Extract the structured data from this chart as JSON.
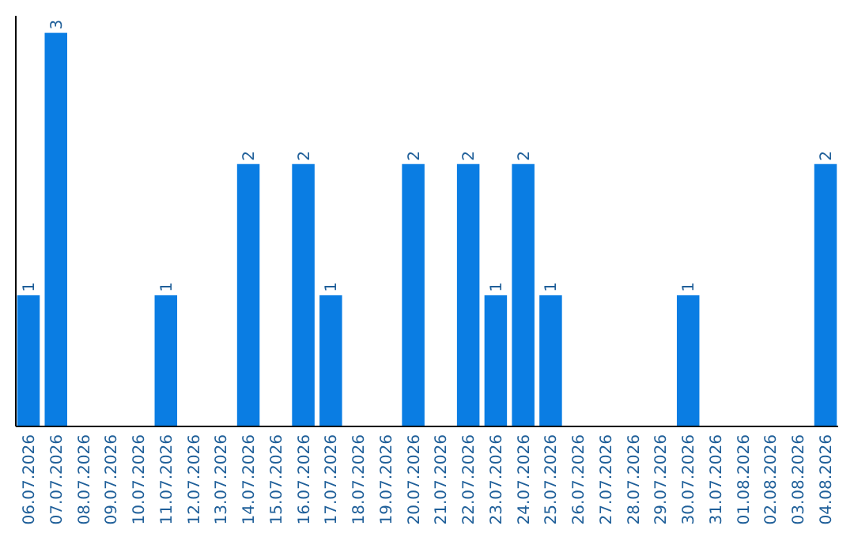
{
  "chart_data": {
    "type": "bar",
    "categories": [
      "06.07.2026",
      "07.07.2026",
      "08.07.2026",
      "09.07.2026",
      "10.07.2026",
      "11.07.2026",
      "12.07.2026",
      "13.07.2026",
      "14.07.2026",
      "15.07.2026",
      "16.07.2026",
      "17.07.2026",
      "18.07.2026",
      "19.07.2026",
      "20.07.2026",
      "21.07.2026",
      "22.07.2026",
      "23.07.2026",
      "24.07.2026",
      "25.07.2026",
      "26.07.2026",
      "27.07.2026",
      "28.07.2026",
      "29.07.2026",
      "30.07.2026",
      "31.07.2026",
      "01.08.2026",
      "02.08.2026",
      "03.08.2026",
      "04.08.2026"
    ],
    "values": [
      1,
      3,
      0,
      0,
      0,
      1,
      0,
      0,
      2,
      0,
      2,
      1,
      0,
      0,
      2,
      0,
      2,
      1,
      2,
      1,
      0,
      0,
      0,
      0,
      1,
      0,
      0,
      0,
      0,
      2
    ],
    "value_labels": [
      "1",
      "3",
      null,
      null,
      null,
      "1",
      null,
      null,
      "2",
      null,
      "2",
      "1",
      null,
      null,
      "2",
      null,
      "2",
      "1",
      "2",
      "1",
      null,
      null,
      null,
      null,
      "1",
      null,
      null,
      null,
      null,
      "2"
    ],
    "color": "#0a7de3",
    "ylim": [
      0,
      3.13
    ],
    "tick_labels": "x",
    "grid": false
  }
}
